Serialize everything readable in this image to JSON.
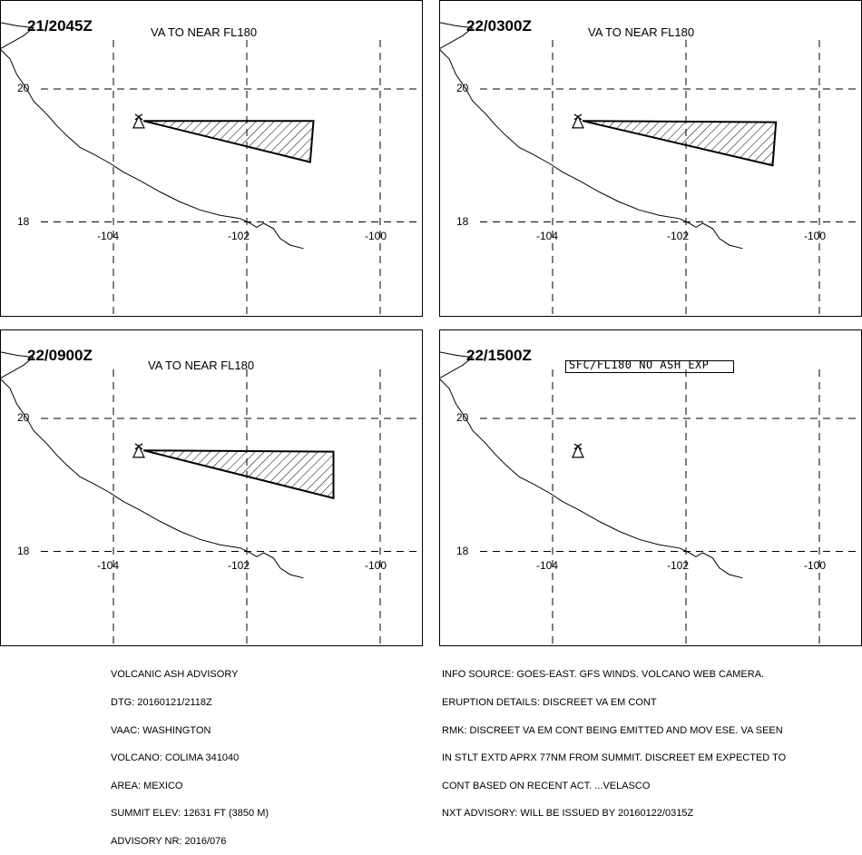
{
  "panels": [
    {
      "time": "21/2045Z",
      "fl": "VA TO NEAR FL180",
      "ash": true,
      "polygon": [
        [
          -103.55,
          19.52
        ],
        [
          -101.0,
          19.52
        ],
        [
          -101.05,
          18.9
        ]
      ]
    },
    {
      "time": "22/0300Z",
      "fl": "VA TO NEAR FL180",
      "ash": true,
      "polygon": [
        [
          -103.55,
          19.52
        ],
        [
          -100.65,
          19.5
        ],
        [
          -100.7,
          18.85
        ]
      ]
    },
    {
      "time": "22/0900Z",
      "fl": "VA TO NEAR FL180",
      "ash": true,
      "polygon": [
        [
          -103.55,
          19.52
        ],
        [
          -100.7,
          19.5
        ],
        [
          -100.7,
          18.8
        ]
      ]
    },
    {
      "time": "22/1500Z",
      "fl": "SFC/FL180 NO ASH EXP",
      "ash": false,
      "polygon": []
    }
  ],
  "map": {
    "lat_labels": [
      "20",
      "18"
    ],
    "lon_labels": [
      "-104",
      "-102",
      "-100"
    ],
    "lat_values": [
      20,
      18
    ],
    "lon_values": [
      -104,
      -102,
      -100
    ],
    "volcano": {
      "lon": -103.62,
      "lat": 19.51
    },
    "coastline": [
      [
        -105.7,
        21.0
      ],
      [
        -105.45,
        20.95
      ],
      [
        -105.2,
        20.92
      ],
      [
        -105.35,
        20.8
      ],
      [
        -105.7,
        20.6
      ],
      [
        -105.55,
        20.45
      ],
      [
        -105.45,
        20.22
      ],
      [
        -105.3,
        20.0
      ],
      [
        -105.2,
        19.82
      ],
      [
        -105.0,
        19.62
      ],
      [
        -104.85,
        19.45
      ],
      [
        -104.7,
        19.3
      ],
      [
        -104.5,
        19.12
      ],
      [
        -104.3,
        19.02
      ],
      [
        -104.05,
        18.88
      ],
      [
        -103.85,
        18.75
      ],
      [
        -103.6,
        18.62
      ],
      [
        -103.3,
        18.45
      ],
      [
        -103.0,
        18.3
      ],
      [
        -102.7,
        18.18
      ],
      [
        -102.4,
        18.1
      ],
      [
        -102.1,
        18.05
      ],
      [
        -101.95,
        17.98
      ],
      [
        -101.85,
        17.92
      ],
      [
        -101.75,
        17.98
      ],
      [
        -101.6,
        17.9
      ],
      [
        -101.5,
        17.75
      ],
      [
        -101.35,
        17.65
      ],
      [
        -101.15,
        17.6
      ]
    ]
  },
  "advisory_left": [
    "VOLCANIC ASH ADVISORY",
    "DTG: 20160121/2118Z",
    "VAAC: WASHINGTON",
    "VOLCANO: COLIMA 341040",
    "AREA: MEXICO",
    "SUMMIT ELEV: 12631 FT (3850 M)",
    "ADVISORY NR: 2016/076"
  ],
  "advisory_right": [
    "INFO SOURCE: GOES-EAST. GFS WINDS. VOLCANO WEB CAMERA.",
    "ERUPTION DETAILS: DISCREET VA EM CONT",
    "RMK: DISCREET VA EM CONT BEING EMITTED AND MOV ESE. VA SEEN",
    "IN STLT EXTD APRX 77NM FROM SUMMIT. DISCREET EM EXPECTED TO",
    "CONT BASED ON RECENT ACT. ...VELASCO",
    "NXT ADVISORY: WILL BE ISSUED BY 20160122/0315Z"
  ]
}
